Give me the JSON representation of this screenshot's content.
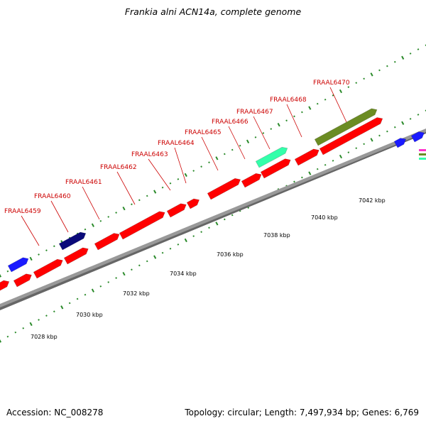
{
  "title": "Frankia alni ACN14a, complete genome",
  "footer": {
    "accession": "Accession: NC_008278",
    "summary": "Topology: circular; Length: 7,497,934 bp; Genes: 6,769"
  },
  "colors": {
    "cds": "#ff0000",
    "blue_feature": "#1a1aff",
    "navy_feature": "#0a0a7a",
    "aqua_feature": "#33ffaa",
    "olive_feature": "#6b8c23",
    "backbone": "#999999",
    "ticks": "#2a8a2a",
    "gene_labels": "#cc0000"
  },
  "gene_labels": [
    "FRAAL6459",
    "FRAAL6460",
    "FRAAL6461",
    "FRAAL6462",
    "FRAAL6463",
    "FRAAL6464",
    "FRAAL6465",
    "FRAAL6466",
    "FRAAL6467",
    "FRAAL6468",
    "FRAAL6470"
  ],
  "scale_labels": [
    "7028 kbp",
    "7030 kbp",
    "7032 kbp",
    "7034 kbp",
    "7036 kbp",
    "7038 kbp",
    "7040 kbp",
    "7042 kbp"
  ]
}
